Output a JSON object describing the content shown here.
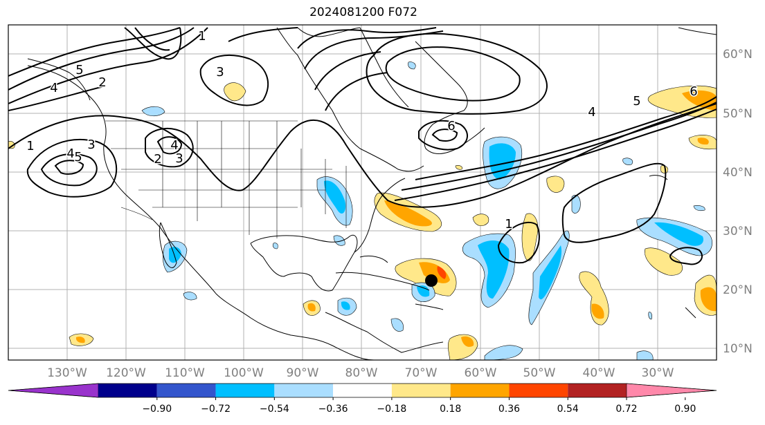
{
  "title": "2024081200 F072",
  "map": {
    "lon_labels": [
      "130°W",
      "120°W",
      "110°W",
      "100°W",
      "90°W",
      "80°W",
      "70°W",
      "60°W",
      "50°W",
      "40°W",
      "30°W"
    ],
    "lat_labels": [
      "60°N",
      "50°N",
      "40°N",
      "30°N",
      "20°N",
      "10°N"
    ],
    "contour_labels": [
      "1",
      "1",
      "1",
      "2",
      "2",
      "3",
      "3",
      "3",
      "4",
      "4",
      "4",
      "4",
      "5",
      "5",
      "5",
      "6",
      "6"
    ],
    "marker": "storm-center"
  },
  "colorbar": {
    "ticks": [
      "−0.90",
      "−0.72",
      "−0.54",
      "−0.36",
      "−0.18",
      "0.18",
      "0.36",
      "0.54",
      "0.72",
      "0.90"
    ],
    "colors": [
      "#9933cc",
      "#00008b",
      "#3355cc",
      "#00bfff",
      "#aadeff",
      "#ffffff",
      "#ffe88a",
      "#ffa500",
      "#ff4500",
      "#b22222",
      "#ff88aa"
    ]
  }
}
